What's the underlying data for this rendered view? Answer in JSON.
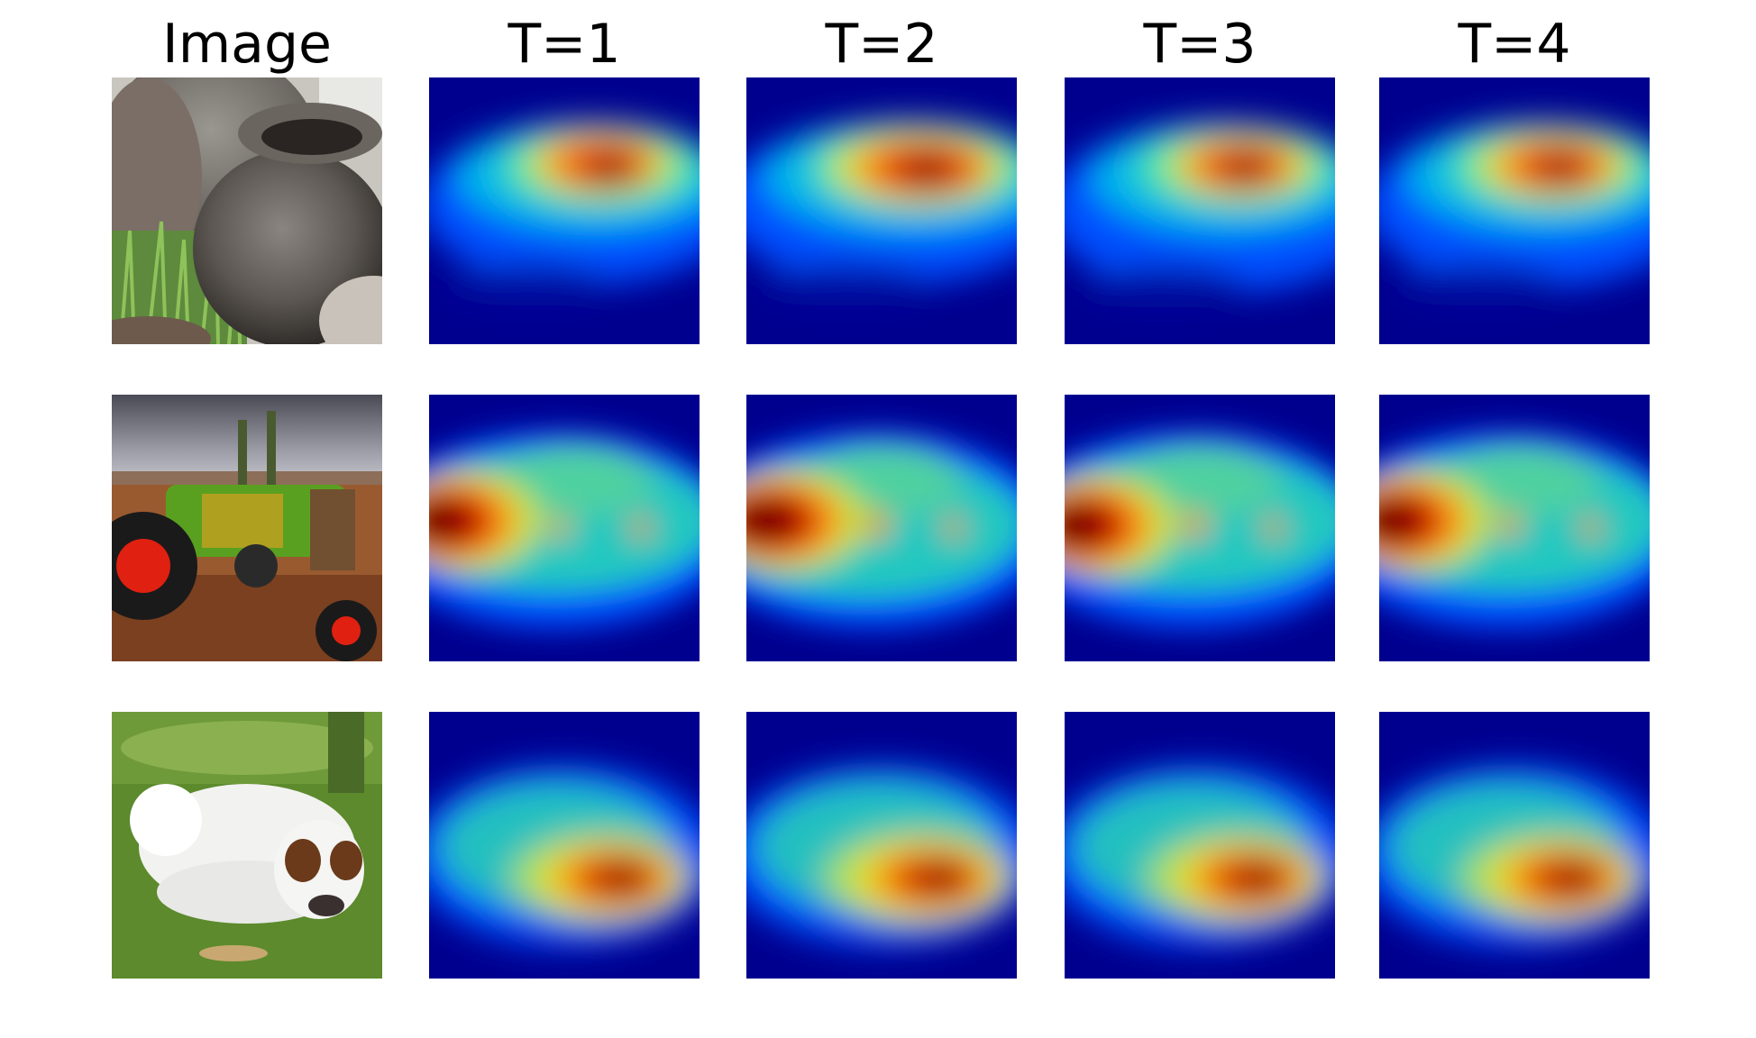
{
  "headers": [
    "Image",
    "T=1",
    "T=2",
    "T=3",
    "T=4"
  ],
  "rows": [
    {
      "subject": "clay pots",
      "heatmaps": [
        "heatmap",
        "heatmap",
        "heatmap",
        "heatmap"
      ]
    },
    {
      "subject": "tractor",
      "heatmaps": [
        "heatmap",
        "heatmap",
        "heatmap",
        "heatmap"
      ]
    },
    {
      "subject": "dog",
      "heatmaps": [
        "heatmap",
        "heatmap",
        "heatmap",
        "heatmap"
      ]
    }
  ],
  "colormap": [
    "#00008f",
    "#0040ff",
    "#00c0ff",
    "#40ffbf",
    "#ffff00",
    "#ff8000",
    "#e00000",
    "#600000"
  ]
}
